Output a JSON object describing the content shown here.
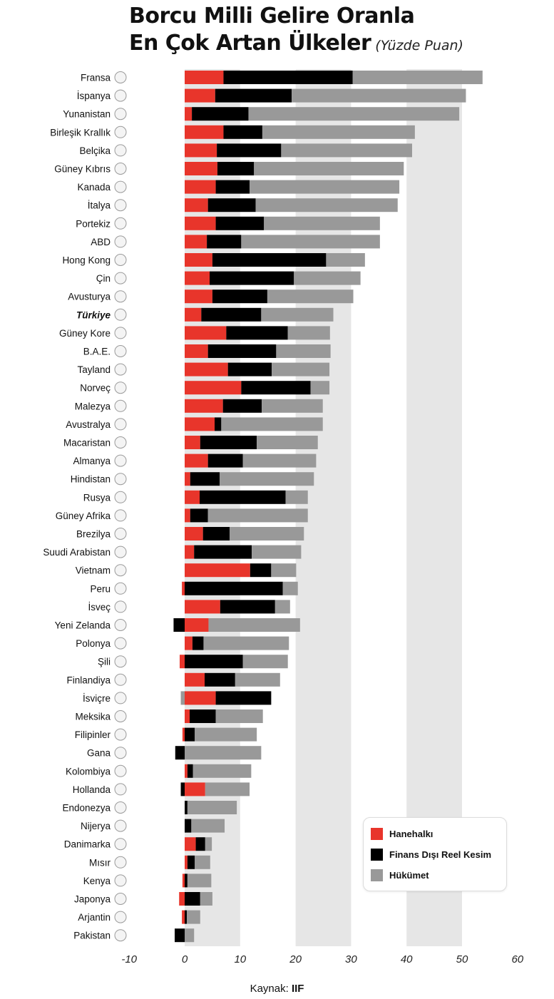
{
  "title": {
    "line1": "Borcu Milli Gelire Oranla",
    "line2": "En Çok Artan Ülkeler",
    "subtitle": "(Yüzde Puan)"
  },
  "source": {
    "label": "Kaynak:",
    "value": "IIF"
  },
  "colors": {
    "household": "#e8352b",
    "corporate": "#000000",
    "government": "#999999",
    "band": "#e6e6e6"
  },
  "chart_data": {
    "type": "bar",
    "orientation": "horizontal",
    "stacked": true,
    "x_ticks": [
      "-10",
      "0",
      "10",
      "20",
      "30",
      "40",
      "50",
      "60"
    ],
    "xlim": [
      -10,
      60
    ],
    "alternating_bands": true,
    "legend_position": "bottom-right",
    "highlight": "Türkiye",
    "categories": [
      "Fransa",
      "İspanya",
      "Yunanistan",
      "Birleşik Krallık",
      "Belçika",
      "Güney Kıbrıs",
      "Kanada",
      "İtalya",
      "Portekiz",
      "ABD",
      "Hong Kong",
      "Çin",
      "Avusturya",
      "Türkiye",
      "Güney Kore",
      "B.A.E.",
      "Tayland",
      "Norveç",
      "Malezya",
      "Avustralya",
      "Macaristan",
      "Almanya",
      "Hindistan",
      "Rusya",
      "Güney Afrika",
      "Brezilya",
      "Suudi Arabistan",
      "Vietnam",
      "Peru",
      "İsveç",
      "Yeni Zelanda",
      "Polonya",
      "Şili",
      "Finlandiya",
      "İsviçre",
      "Meksika",
      "Filipinler",
      "Gana",
      "Kolombiya",
      "Hollanda",
      "Endonezya",
      "Nijerya",
      "Danimarka",
      "Mısır",
      "Kenya",
      "Japonya",
      "Arjantin",
      "Pakistan"
    ],
    "series": [
      {
        "name": "Hanehalkı",
        "color": "#e8352b",
        "values": [
          7.0,
          5.5,
          1.3,
          7.0,
          5.8,
          5.9,
          5.6,
          4.2,
          5.6,
          4.0,
          5.0,
          4.5,
          5.0,
          3.0,
          7.5,
          4.2,
          7.8,
          10.2,
          6.9,
          5.4,
          2.8,
          4.2,
          1.0,
          2.7,
          1.0,
          3.3,
          1.7,
          11.8,
          -0.5,
          6.4,
          4.3,
          1.4,
          -0.9,
          3.6,
          5.6,
          0.9,
          -0.4,
          0.0,
          0.5,
          3.7,
          0.0,
          0.0,
          2.0,
          0.5,
          -0.4,
          -1.0,
          -0.5,
          0.0
        ]
      },
      {
        "name": "Finans Dışı Reel Kesim",
        "color": "#000000",
        "values": [
          23.3,
          13.8,
          10.2,
          7.0,
          11.6,
          6.6,
          6.1,
          8.6,
          8.7,
          6.2,
          20.5,
          15.2,
          9.9,
          10.8,
          11.1,
          12.3,
          7.9,
          12.5,
          7.0,
          1.2,
          10.2,
          6.3,
          5.3,
          15.5,
          3.2,
          4.8,
          10.4,
          3.8,
          17.7,
          9.9,
          -2.0,
          2.0,
          10.5,
          5.5,
          10.0,
          4.7,
          1.8,
          -1.7,
          1.0,
          -0.7,
          0.5,
          1.2,
          1.7,
          1.3,
          0.5,
          2.8,
          0.4,
          -1.8
        ]
      },
      {
        "name": "Hükümet",
        "color": "#999999",
        "values": [
          23.4,
          31.4,
          38.0,
          27.5,
          23.6,
          27.0,
          27.0,
          25.6,
          20.9,
          25.0,
          7.0,
          12.0,
          15.5,
          13.0,
          7.6,
          9.8,
          10.4,
          3.4,
          11.0,
          18.3,
          11.0,
          13.2,
          17.0,
          4.0,
          18.0,
          13.4,
          8.9,
          4.5,
          2.7,
          2.7,
          16.5,
          15.4,
          8.1,
          8.1,
          -0.7,
          8.5,
          11.2,
          13.8,
          10.5,
          8.0,
          8.9,
          6.0,
          1.2,
          2.8,
          4.3,
          2.2,
          2.4,
          1.7
        ]
      }
    ]
  }
}
